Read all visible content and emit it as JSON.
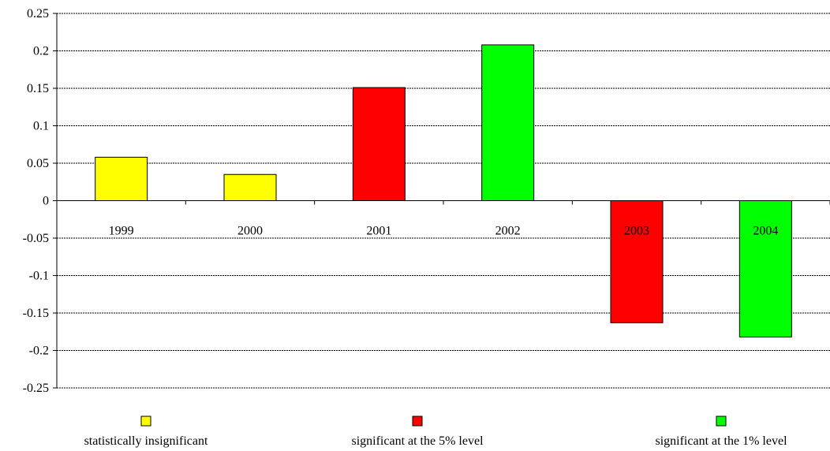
{
  "chart_data": {
    "type": "bar",
    "categories": [
      "1999",
      "2000",
      "2001",
      "2002",
      "2003",
      "2004"
    ],
    "values": [
      0.058,
      0.035,
      0.151,
      0.208,
      -0.163,
      -0.182
    ],
    "significance": [
      "insignificant",
      "insignificant",
      "5pct",
      "1pct",
      "5pct",
      "1pct"
    ],
    "title": "",
    "xlabel": "",
    "ylabel": "",
    "ylim": [
      -0.25,
      0.25
    ],
    "yticks": [
      "0.25",
      "0.2",
      "0.15",
      "0.1",
      "0.05",
      "0",
      "-0.05",
      "-0.1",
      "-0.15",
      "-0.2",
      "-0.25"
    ],
    "ytick_values": [
      0.25,
      0.2,
      0.15,
      0.1,
      0.05,
      0,
      -0.05,
      -0.1,
      -0.15,
      -0.2,
      -0.25
    ],
    "grid": true,
    "legend_position": "bottom",
    "legend": [
      {
        "key": "insignificant",
        "label": "statistically insignificant",
        "color": "#ffff00"
      },
      {
        "key": "5pct",
        "label": "significant at the 5% level",
        "color": "#ff0000"
      },
      {
        "key": "1pct",
        "label": "significant at the 1% level",
        "color": "#00ff00"
      }
    ]
  }
}
